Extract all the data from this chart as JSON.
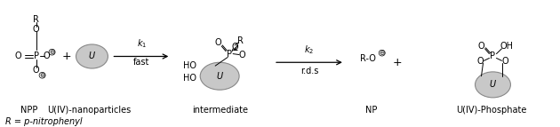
{
  "bg": "#ffffff",
  "figsize": [
    6.3,
    1.43
  ],
  "dpi": 100,
  "gray": "#c8c8c8",
  "gray_edge": "#888888",
  "labels": {
    "npp": "NPP",
    "u_nano": "U(IV)-nanoparticles",
    "intermediate": "intermediate",
    "np": "NP",
    "u_phosphate": "U(IV)-Phosphate",
    "r_def": "R = p-nitrophenyl",
    "k1": "$k_1$",
    "fast": "fast",
    "k2": "$k_2$",
    "rds": "r.d.s"
  }
}
